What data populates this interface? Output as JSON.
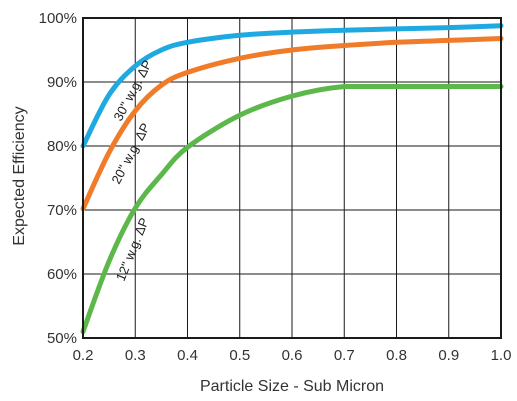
{
  "chart_data": {
    "type": "line",
    "title": "",
    "xlabel": "Particle Size - Sub Micron",
    "ylabel": "Expected Efficiency",
    "xlim": [
      0.2,
      1.0
    ],
    "ylim": [
      50,
      100
    ],
    "x_ticks": [
      "0.2",
      "0.3",
      "0.4",
      "0.5",
      "0.6",
      "0.7",
      "0.8",
      "0.9",
      "1.0"
    ],
    "y_ticks": [
      "50%",
      "60%",
      "70%",
      "80%",
      "90%",
      "100%"
    ],
    "grid": true,
    "x": [
      0.2,
      0.25,
      0.3,
      0.35,
      0.4,
      0.5,
      0.6,
      0.7,
      0.8,
      0.9,
      1.0
    ],
    "series": [
      {
        "name": "30\" w.g. ΔP",
        "color": "#1fa9e1",
        "values": [
          80.0,
          88.0,
          92.5,
          95.0,
          96.2,
          97.3,
          97.8,
          98.1,
          98.3,
          98.5,
          98.8
        ]
      },
      {
        "name": "20\" w.g. ΔP",
        "color": "#f07c2a",
        "values": [
          70.2,
          79.0,
          85.5,
          89.5,
          91.5,
          93.7,
          95.0,
          95.7,
          96.2,
          96.5,
          96.8
        ]
      },
      {
        "name": "12\" w.g. ΔP",
        "color": "#5cb84a",
        "values": [
          51.0,
          62.0,
          70.3,
          75.5,
          79.8,
          84.8,
          87.8,
          89.3,
          89.3,
          89.3,
          89.3
        ]
      }
    ]
  }
}
